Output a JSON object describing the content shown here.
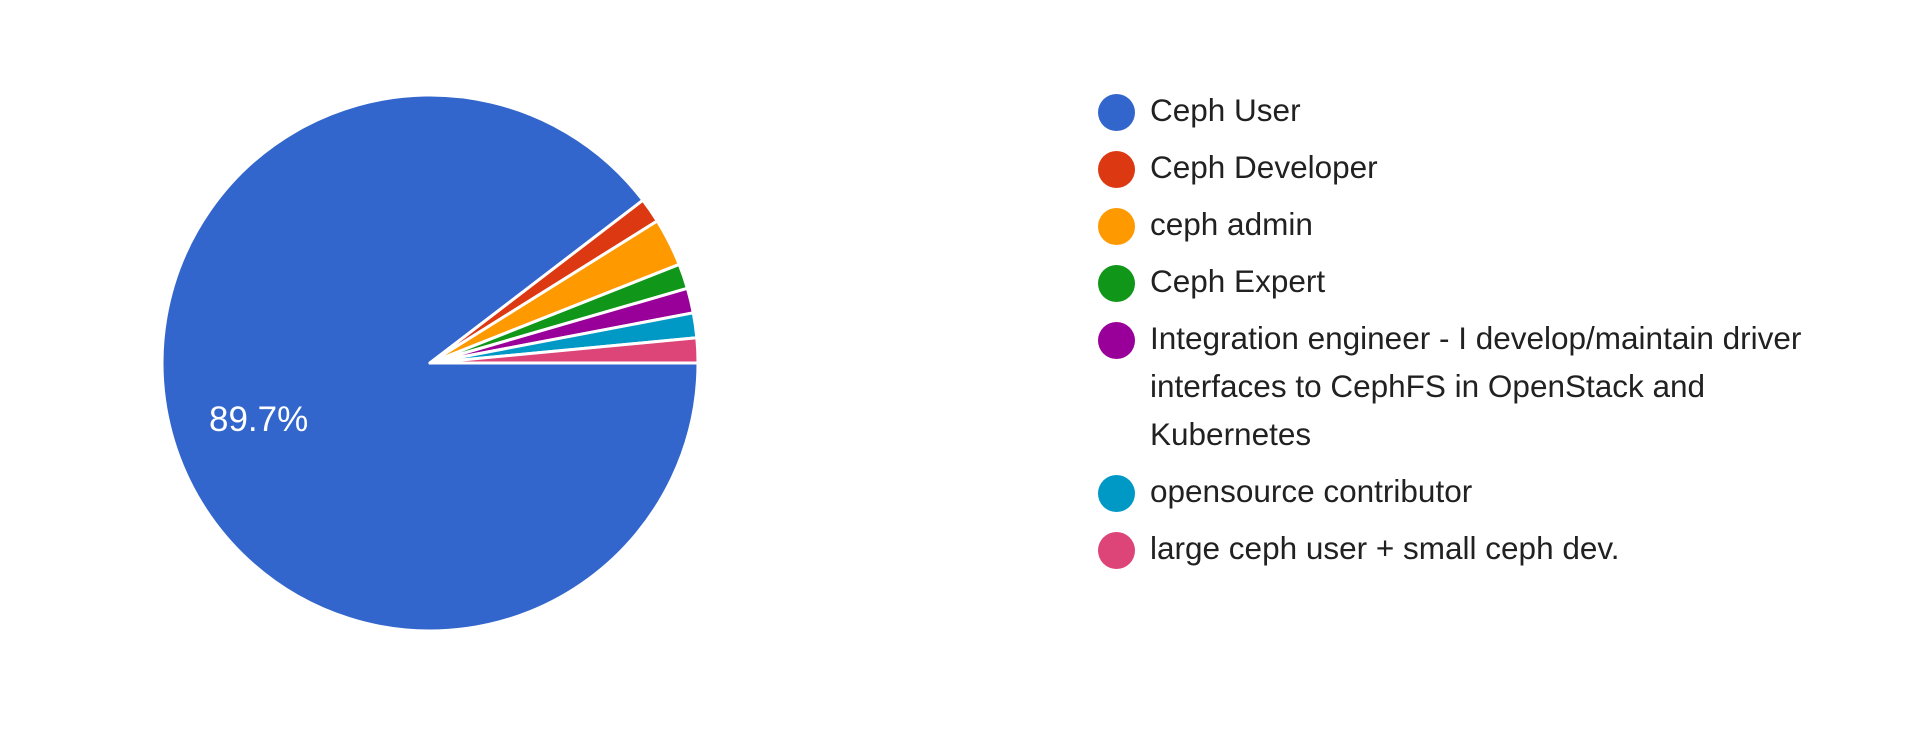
{
  "chart_data": {
    "type": "pie",
    "title": "",
    "categories": [
      "Ceph User",
      "Ceph Developer",
      "ceph admin",
      "Ceph Expert",
      "Integration engineer - I develop/maintain driver interfaces to CephFS in OpenStack and Kubernetes",
      "opensource contributor",
      "large ceph user + small ceph dev."
    ],
    "values": [
      89.7,
      1.5,
      2.9,
      1.5,
      1.5,
      1.5,
      1.5
    ],
    "colors": [
      "#3366cc",
      "#dc3912",
      "#ff9900",
      "#109618",
      "#990099",
      "#0099c6",
      "#dd4477"
    ],
    "slice_labels": [
      {
        "index": 0,
        "text": "89.7%"
      }
    ],
    "legend_position": "right"
  },
  "legend": {
    "items": [
      {
        "label": "Ceph User",
        "color": "#3366cc"
      },
      {
        "label": "Ceph Developer",
        "color": "#dc3912"
      },
      {
        "label": "ceph admin",
        "color": "#ff9900"
      },
      {
        "label": "Ceph Expert",
        "color": "#109618"
      },
      {
        "label": "Integration engineer - I develop/maintain driver interfaces to CephFS in OpenStack and Kubernetes",
        "color": "#990099"
      },
      {
        "label": "opensource contributor",
        "color": "#0099c6"
      },
      {
        "label": "large ceph user + small ceph dev.",
        "color": "#dd4477"
      }
    ]
  },
  "pie": {
    "main_label": "89.7%"
  }
}
